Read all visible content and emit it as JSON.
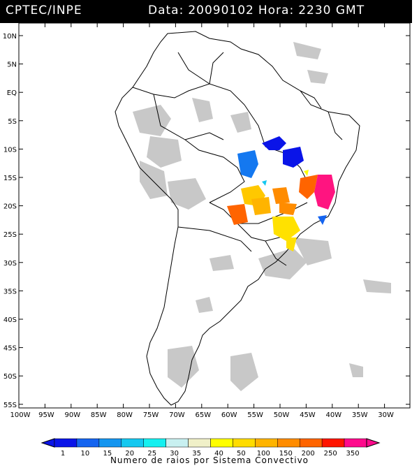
{
  "header": {
    "source": "CPTEC/INPE",
    "date_label": "Data:",
    "date_value": "20090102",
    "time_label": "Hora:",
    "time_value": "2230 GMT"
  },
  "map": {
    "lat_labels": [
      "10N",
      "5N",
      "EQ",
      "5S",
      "10S",
      "15S",
      "20S",
      "25S",
      "30S",
      "35S",
      "40S",
      "45S",
      "50S",
      "55S"
    ],
    "lon_labels": [
      "100W",
      "95W",
      "90W",
      "85W",
      "80W",
      "75W",
      "70W",
      "65W",
      "60W",
      "55W",
      "50W",
      "45W",
      "40W",
      "35W",
      "30W"
    ],
    "colors": {
      "cloud": "#c8c8c8",
      "border": "#000000"
    }
  },
  "legend": {
    "title": "Numero de raios por Sistema Convectivo",
    "ticks": [
      "1",
      "10",
      "15",
      "20",
      "25",
      "30",
      "35",
      "40",
      "50",
      "100",
      "150",
      "200",
      "250",
      "350"
    ],
    "colors": [
      "#0a14e8",
      "#1464f0",
      "#1496f0",
      "#14c8f0",
      "#14f0f0",
      "#c8f0f0",
      "#f0f0c8",
      "#ffff00",
      "#ffdc00",
      "#ffb400",
      "#ff8c00",
      "#ff6400",
      "#ff1400",
      "#ff0a8c"
    ]
  }
}
